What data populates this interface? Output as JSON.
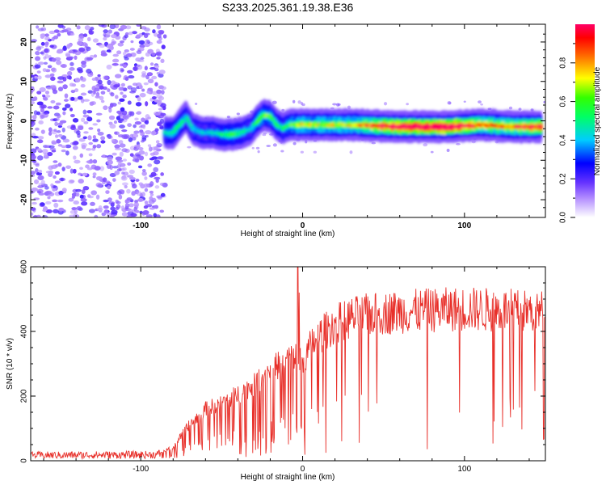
{
  "chart_data": [
    {
      "type": "heatmap",
      "title": "S233.2025.361.19.38.E36",
      "xlabel": "Height of straight line (km)",
      "ylabel": "Frequency (Hz)",
      "xlim": [
        -168,
        150
      ],
      "ylim": [
        -24.5,
        24.5
      ],
      "x_ticks": [
        -100,
        0,
        100
      ],
      "y_ticks": [
        20,
        10,
        0,
        -10,
        -20
      ],
      "colorbar": {
        "label": "Normalized spectral amplitude",
        "range": [
          0,
          1
        ],
        "ticks": [
          "0.0",
          "0.2",
          "0.4",
          "0.6",
          "0.8"
        ],
        "colors": [
          "#ffffff",
          "#7a3cff",
          "#0000ff",
          "#00d7ff",
          "#00ff00",
          "#ffff00",
          "#ff0000",
          "#ff0066"
        ]
      },
      "noise_region_x": [
        -168,
        -85
      ],
      "ridge": {
        "x": [
          -85,
          -80,
          -76,
          -72,
          -68,
          -62,
          -56,
          -50,
          -44,
          -38,
          -32,
          -28,
          -24,
          -20,
          -16,
          -12,
          -8,
          -4,
          0,
          10,
          30,
          60,
          90,
          110,
          130,
          148
        ],
        "freq_hz": [
          -3,
          -3,
          -1,
          1,
          -2,
          -3,
          -3,
          -3.5,
          -3.5,
          -3,
          -2,
          0,
          1.5,
          1,
          -1,
          -2,
          -1,
          -1,
          -1,
          -1,
          -1,
          -1.5,
          -1.5,
          -1,
          -1.5,
          -1.5
        ],
        "amplitude": [
          0.3,
          0.35,
          0.4,
          0.3,
          0.3,
          0.3,
          0.3,
          0.35,
          0.4,
          0.35,
          0.3,
          0.4,
          0.45,
          0.4,
          0.35,
          0.35,
          0.4,
          0.45,
          0.5,
          0.5,
          0.5,
          0.8,
          0.85,
          0.6,
          0.6,
          0.7
        ]
      }
    },
    {
      "type": "line",
      "xlabel": "Height of straight line (km)",
      "ylabel": "SNR (10 * v/v)",
      "xlim": [
        -168,
        150
      ],
      "ylim": [
        0,
        600
      ],
      "x_ticks": [
        -100,
        0,
        100
      ],
      "y_ticks": [
        0,
        200,
        400,
        600
      ],
      "series": [
        {
          "name": "SNR",
          "color": "#e8302a",
          "envelope_x": [
            -168,
            -90,
            -80,
            -70,
            -60,
            -50,
            -40,
            -30,
            -20,
            -10,
            -5,
            0,
            5,
            10,
            20,
            30,
            40,
            60,
            80,
            100,
            120,
            150
          ],
          "envelope_y": [
            20,
            22,
            45,
            120,
            170,
            190,
            220,
            250,
            300,
            330,
            350,
            320,
            380,
            410,
            450,
            470,
            480,
            490,
            495,
            500,
            495,
            490
          ],
          "spike_x": [
            -3,
            -2
          ],
          "spike_y": [
            600,
            520
          ]
        }
      ]
    }
  ]
}
